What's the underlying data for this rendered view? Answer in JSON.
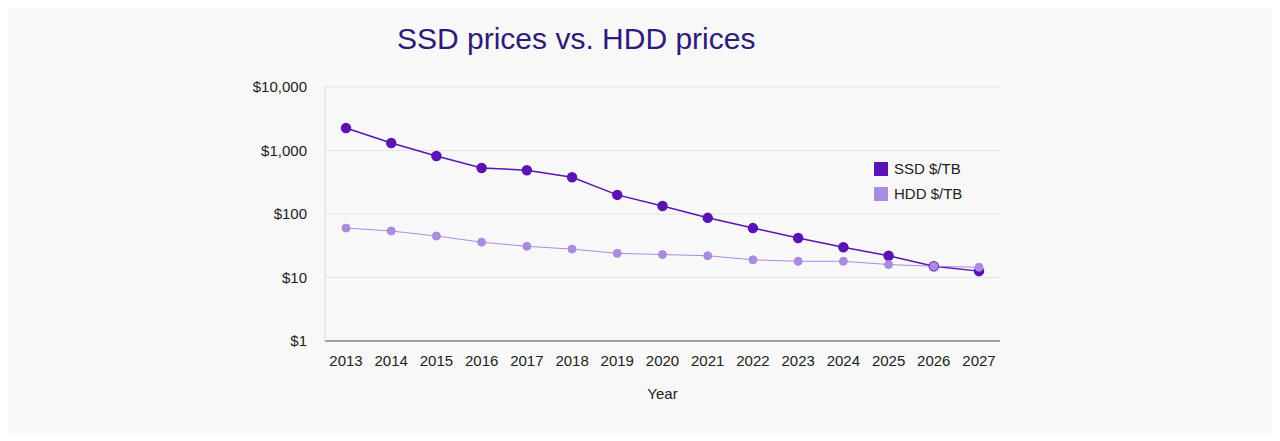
{
  "chart_data": {
    "type": "line",
    "title": "SSD prices vs. HDD prices",
    "x_label": "Year",
    "categories": [
      "2013",
      "2014",
      "2015",
      "2016",
      "2017",
      "2018",
      "2019",
      "2020",
      "2021",
      "2022",
      "2023",
      "2024",
      "2025",
      "2026",
      "2027"
    ],
    "series": [
      {
        "name": "SSD $/TB",
        "color": "#5a14b4",
        "marker": "circle",
        "values": [
          2260,
          1310,
          820,
          530,
          490,
          380,
          200,
          134,
          87,
          60,
          42,
          30,
          22,
          15,
          12.6
        ]
      },
      {
        "name": "HDD $/TB",
        "color": "#a98be0",
        "marker": "circle",
        "values": [
          60,
          54,
          45,
          36,
          31,
          28,
          24,
          23,
          22,
          19,
          18,
          18,
          16,
          15,
          14.5
        ]
      }
    ],
    "ylim": [
      1,
      10000
    ],
    "yticks": [
      {
        "value": 1,
        "label": "$1"
      },
      {
        "value": 10,
        "label": "$10"
      },
      {
        "value": 100,
        "label": "$100"
      },
      {
        "value": 1000,
        "label": "$1,000"
      },
      {
        "value": 10000,
        "label": "$10,000"
      }
    ],
    "log": "y",
    "grid": true,
    "legend": "upper right"
  }
}
